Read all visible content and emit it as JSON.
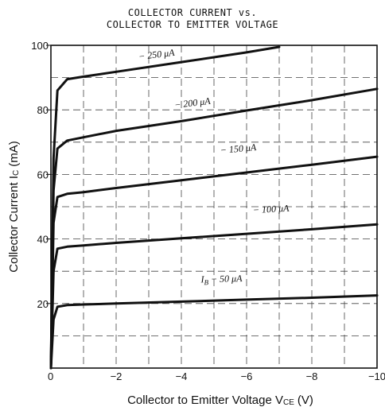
{
  "chart_data": {
    "type": "line",
    "title": [
      "COLLECTOR CURRENT vs.",
      "COLLECTOR TO EMITTER VOLTAGE"
    ],
    "xlabel": "Collector to Emitter Voltage V",
    "xlabel_sub": "CE",
    "xlabel_unit": "(V)",
    "ylabel": "Collector Current I",
    "ylabel_sub": "C",
    "ylabel_unit": "(mA)",
    "xlim": [
      0,
      -10
    ],
    "ylim": [
      0,
      100
    ],
    "x_ticks": [
      0,
      -2,
      -4,
      -6,
      -8,
      -10
    ],
    "x_tick_labels": [
      "0",
      "−2",
      "−4",
      "−6",
      "−8",
      "−10"
    ],
    "y_ticks": [
      20,
      40,
      60,
      80,
      100
    ],
    "y_tick_labels": [
      "20",
      "40",
      "60",
      "80",
      "100"
    ],
    "grid": "dashed",
    "series": [
      {
        "name": "I B − 50 μA",
        "label": "I",
        "label_sub": "B",
        "label_rest": "−  50  μA",
        "x": [
          0,
          -0.08,
          -0.2,
          -0.5,
          -1,
          -2,
          -4,
          -6,
          -8,
          -10
        ],
        "y": [
          0,
          15,
          19,
          19.5,
          19.7,
          20,
          20.6,
          21.2,
          21.8,
          22.5
        ]
      },
      {
        "name": "− 100 μA",
        "label": "− 100  μA",
        "x": [
          0,
          -0.08,
          -0.2,
          -0.5,
          -1,
          -2,
          -4,
          -6,
          -8,
          -10
        ],
        "y": [
          0,
          30,
          37,
          37.6,
          38,
          38.8,
          40.2,
          41.6,
          43,
          44.5
        ]
      },
      {
        "name": "− 150 μA",
        "label": "− 150  μA",
        "x": [
          0,
          -0.08,
          -0.2,
          -0.5,
          -1,
          -2,
          -4,
          -6,
          -8,
          -10
        ],
        "y": [
          0,
          45,
          53,
          54,
          54.5,
          55.8,
          58.2,
          60.6,
          63,
          65.5
        ]
      },
      {
        "name": "− 200 μA",
        "label": "− 200  μA",
        "x": [
          0,
          -0.08,
          -0.2,
          -0.5,
          -1,
          -2,
          -4,
          -6,
          -8,
          -10
        ],
        "y": [
          0,
          55,
          68,
          70.5,
          71.5,
          73.5,
          76.5,
          79.8,
          83,
          86.5
        ]
      },
      {
        "name": "− 250 μA",
        "label": "− 250  μA",
        "x": [
          0,
          -0.08,
          -0.2,
          -0.5,
          -1,
          -2,
          -4,
          -6,
          -7
        ],
        "y": [
          0,
          65,
          86,
          89.5,
          90.3,
          91.8,
          94.8,
          97.8,
          99.5
        ]
      }
    ]
  }
}
